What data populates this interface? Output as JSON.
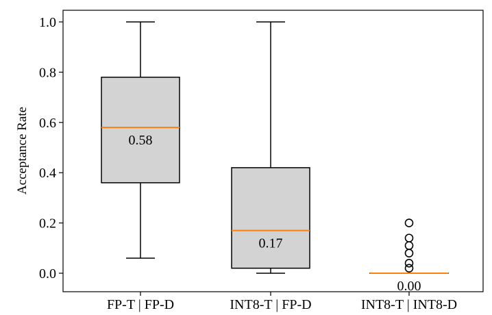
{
  "chart_data": {
    "type": "box",
    "title": "",
    "xlabel": "",
    "ylabel": "Acceptance Rate",
    "ylim": [
      -0.08,
      1.05
    ],
    "yticks": [
      0.0,
      0.2,
      0.4,
      0.6,
      0.8,
      1.0
    ],
    "ytick_labels": [
      "0.0",
      "0.2",
      "0.4",
      "0.6",
      "0.8",
      "1.0"
    ],
    "categories": [
      "FP-T | FP-D",
      "INT8-T | FP-D",
      "INT8-T | INT8-D"
    ],
    "boxes": [
      {
        "whisker_low": 0.06,
        "q1": 0.36,
        "median": 0.58,
        "q3": 0.78,
        "whisker_high": 1.0,
        "fliers": [],
        "median_label": "0.58"
      },
      {
        "whisker_low": 0.0,
        "q1": 0.02,
        "median": 0.17,
        "q3": 0.42,
        "whisker_high": 1.0,
        "fliers": [],
        "median_label": "0.17"
      },
      {
        "whisker_low": 0.0,
        "q1": 0.0,
        "median": 0.0,
        "q3": 0.0,
        "whisker_high": 0.0,
        "fliers": [
          0.02,
          0.04,
          0.08,
          0.11,
          0.14,
          0.2
        ],
        "median_label": "0.00"
      }
    ],
    "colors": {
      "box_fill": "#d3d3d3",
      "median": "#ff7f0e",
      "line": "#000000"
    }
  }
}
